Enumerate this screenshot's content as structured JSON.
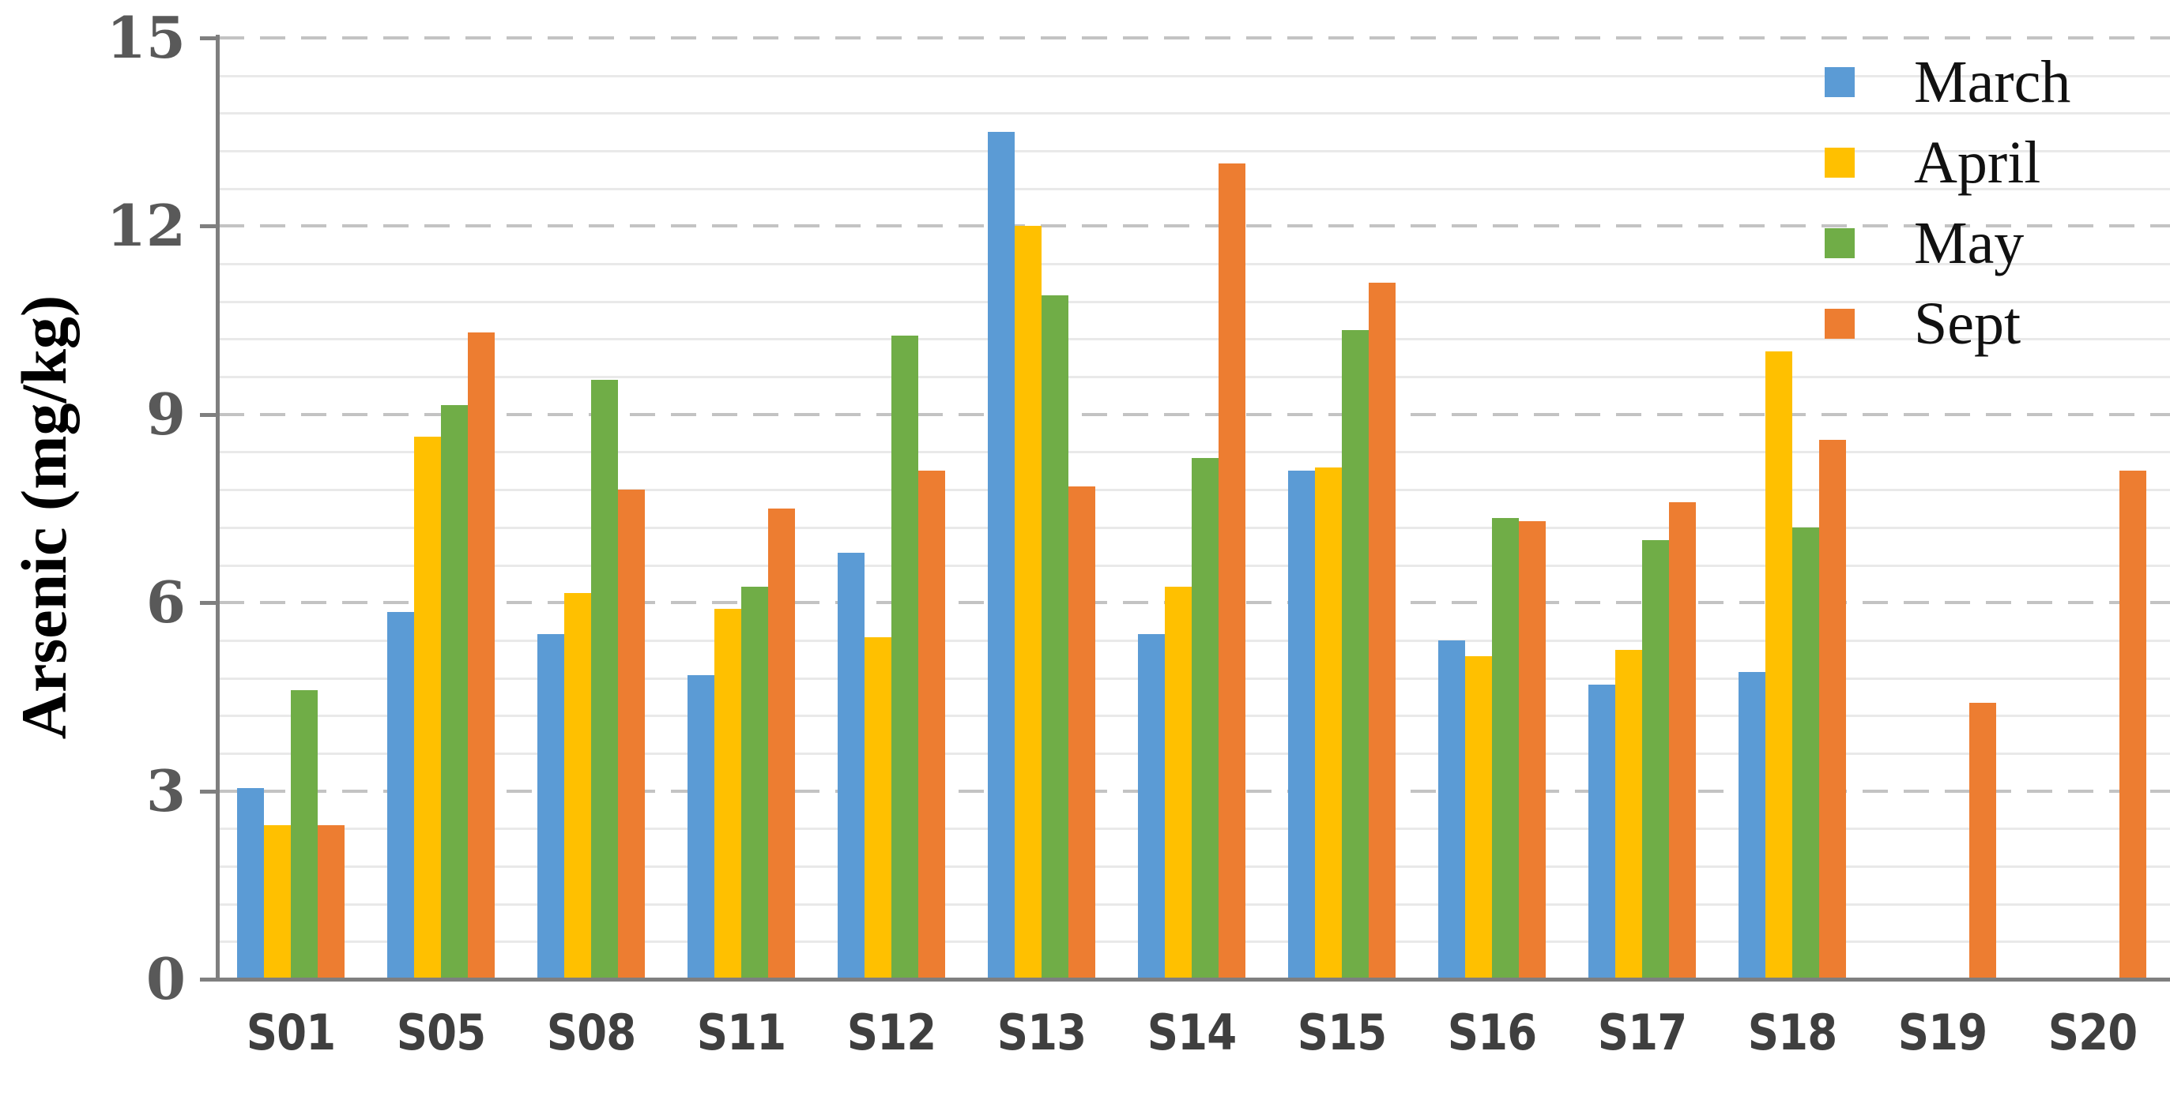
{
  "chart_data": {
    "type": "bar",
    "title": "",
    "ylabel": "Arsenic (mg/kg)",
    "xlabel": "",
    "ylim": [
      0,
      15
    ],
    "yticks": [
      0,
      3,
      6,
      9,
      12,
      15
    ],
    "minor_grid_step": 0.6,
    "grid": "major horizontal dashed gray lines every 3 units, minor light solid lines every 0.6 units",
    "legend_position": "top-right",
    "categories": [
      "S01",
      "S05",
      "S08",
      "S11",
      "S12",
      "S13",
      "S14",
      "S15",
      "S16",
      "S17",
      "S18",
      "S19",
      "S20"
    ],
    "series": [
      {
        "name": "March",
        "color": "#5B9BD5",
        "values": [
          3.05,
          5.85,
          5.5,
          4.85,
          6.8,
          13.5,
          5.5,
          8.1,
          5.4,
          4.7,
          4.9,
          0,
          0
        ]
      },
      {
        "name": "April",
        "color": "#FFC000",
        "values": [
          2.45,
          8.65,
          6.15,
          5.9,
          5.45,
          12.0,
          6.25,
          8.15,
          5.15,
          5.25,
          10.0,
          0,
          0
        ]
      },
      {
        "name": "May",
        "color": "#70AD47",
        "values": [
          4.6,
          9.15,
          9.55,
          6.25,
          10.25,
          10.9,
          8.3,
          10.35,
          7.35,
          7.0,
          7.2,
          0,
          0
        ]
      },
      {
        "name": "Sept",
        "color": "#ED7D31",
        "values": [
          2.45,
          10.3,
          7.8,
          7.5,
          8.1,
          7.85,
          13.0,
          11.1,
          7.3,
          7.6,
          8.6,
          4.4,
          8.1
        ]
      }
    ],
    "colors": {
      "axis_line": "#7F7F7F",
      "major_grid": "#C3C3C3",
      "minor_grid": "#E9E9E9",
      "ytick_label": "#595959",
      "xtick_label": "#3F3F3F",
      "legend_text": "#111111"
    }
  }
}
